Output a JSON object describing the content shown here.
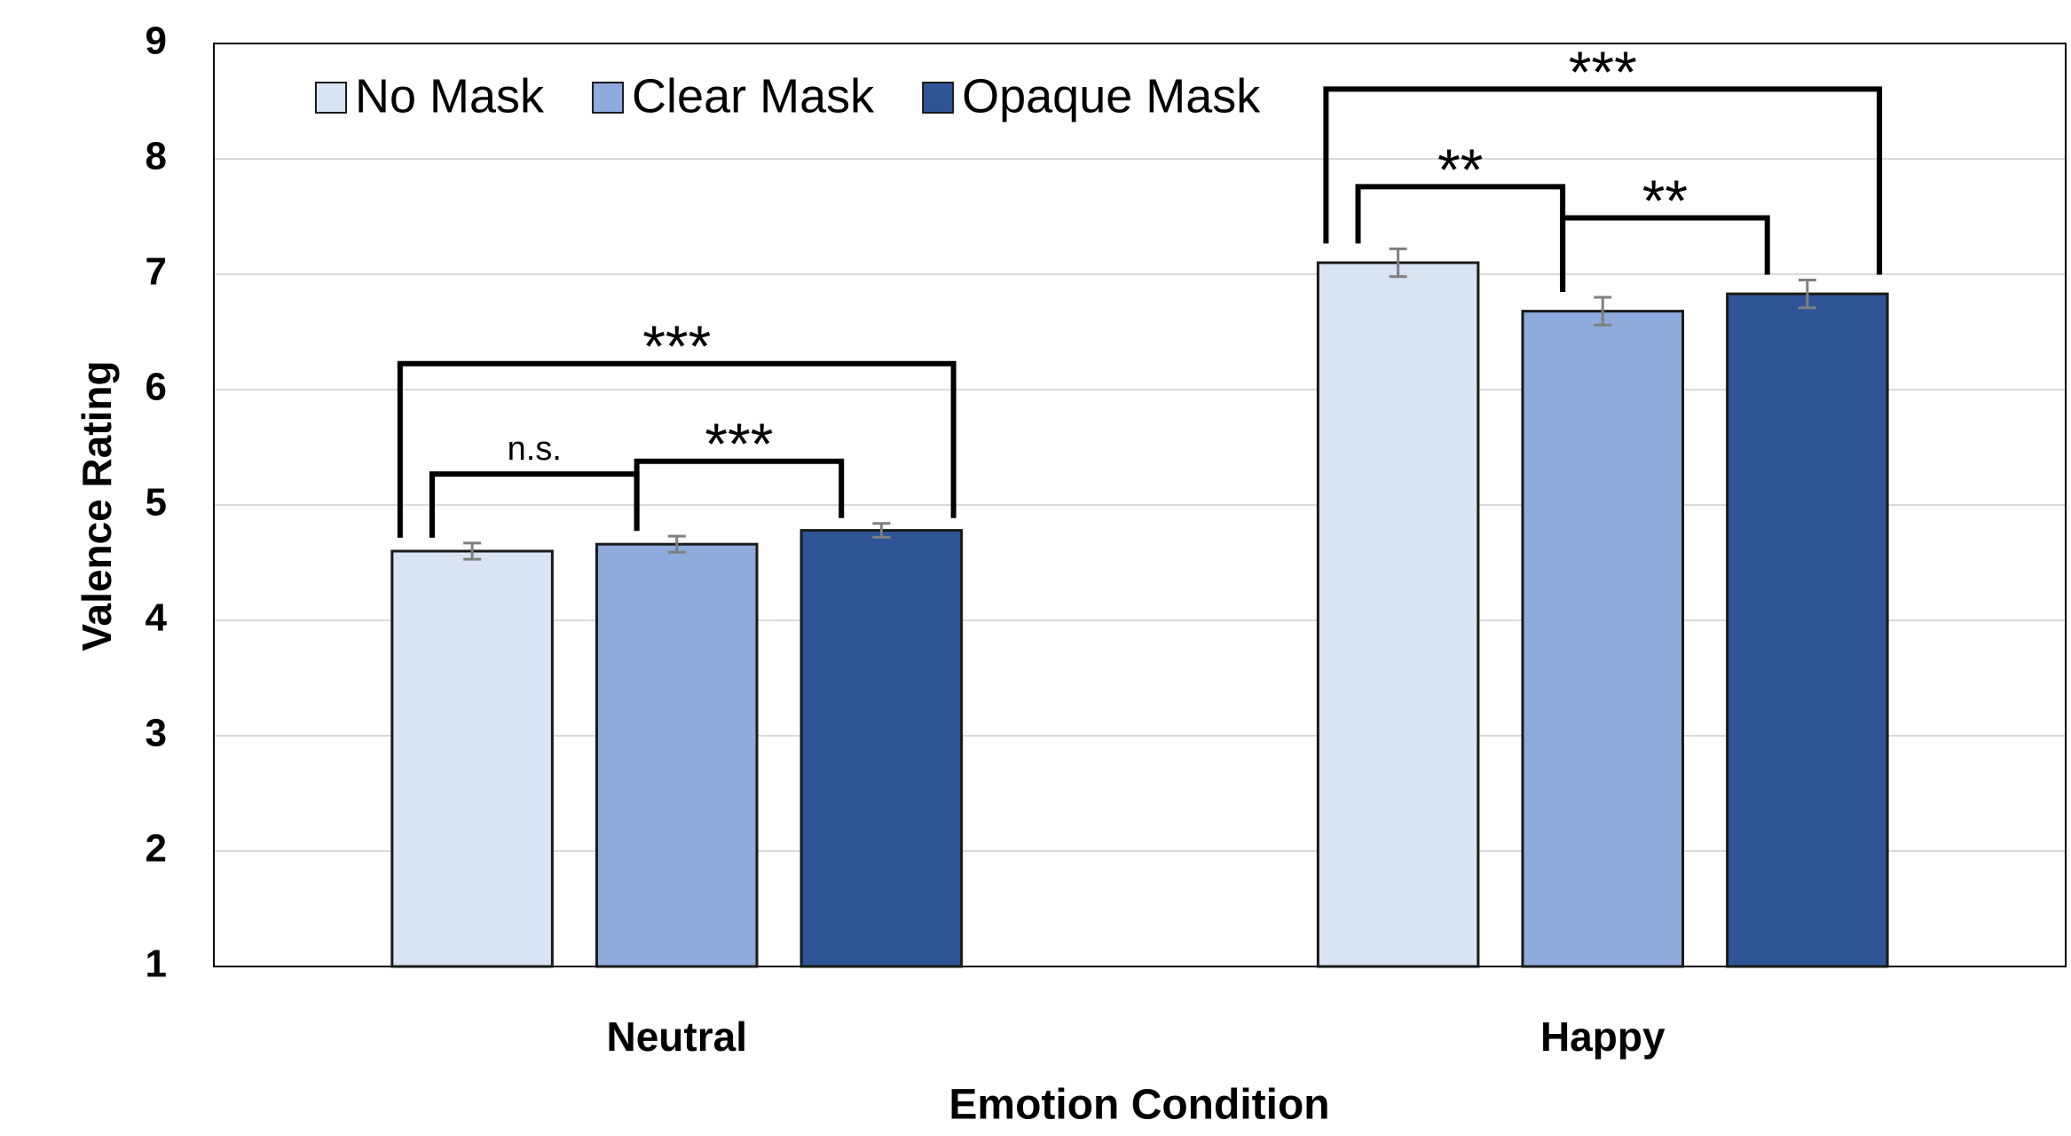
{
  "chart_data": {
    "type": "bar",
    "categories": [
      "Neutral",
      "Happy"
    ],
    "series": [
      {
        "name": "No Mask",
        "color": "#dae3f3",
        "values": [
          4.6,
          7.1
        ],
        "errors": [
          0.07,
          0.12
        ]
      },
      {
        "name": "Clear Mask",
        "color": "#8faadc",
        "values": [
          4.66,
          6.68
        ],
        "errors": [
          0.07,
          0.12
        ]
      },
      {
        "name": "Opaque Mask",
        "color": "#2f5597",
        "values": [
          4.78,
          6.83
        ],
        "errors": [
          0.06,
          0.12
        ]
      }
    ],
    "ylim": [
      1,
      9
    ],
    "yticks": [
      1,
      2,
      3,
      4,
      5,
      6,
      7,
      8,
      9
    ],
    "grid": true,
    "legend": "top-left",
    "x_label": "Emotion Condition",
    "y_label": "Valence Rating",
    "annotations": [
      {
        "text": "n.s.",
        "category": 0,
        "from": 0,
        "to": 1
      },
      {
        "text": "***",
        "category": 0,
        "from": 1,
        "to": 2
      },
      {
        "text": "***",
        "category": 0,
        "from": 0,
        "to": 2
      },
      {
        "text": "**",
        "category": 1,
        "from": 0,
        "to": 1
      },
      {
        "text": "**",
        "category": 1,
        "from": 1,
        "to": 2
      },
      {
        "text": "***",
        "category": 1,
        "from": 0,
        "to": 2
      }
    ]
  }
}
